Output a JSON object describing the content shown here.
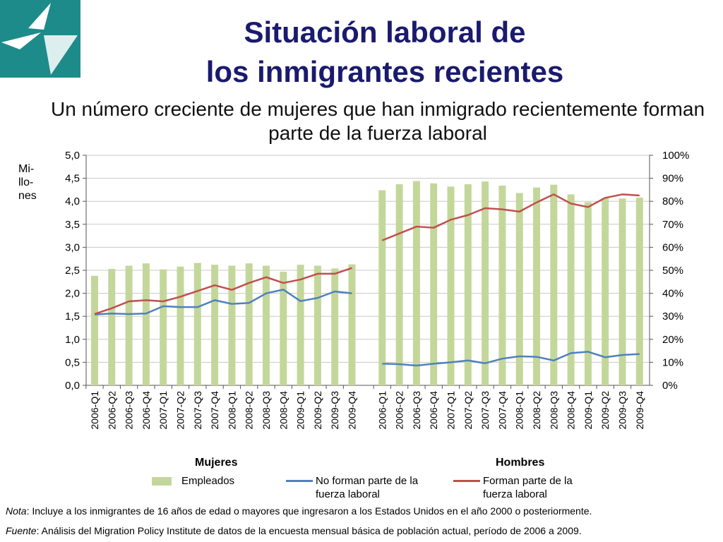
{
  "header": {
    "title_line1": "Situación laboral de",
    "title_line2": "los inmigrantes recientes",
    "subtitle": "Un número creciente de mujeres que han inmigrado recientemente forman parte de la fuerza laboral"
  },
  "colors": {
    "title": "#1a1a6e",
    "bars": "#c4d79b",
    "line_not_in_labor_force": "#4f81bd",
    "line_in_labor_force": "#c0504d",
    "logo_bg": "#1e8b8b"
  },
  "units_label": "Mi-\nllo-\nnes",
  "chart_data": {
    "type": "bar",
    "left_axis": {
      "ylim": [
        0,
        5
      ],
      "ticks": [
        "0,0",
        "0,5",
        "1,0",
        "1,5",
        "2,0",
        "2,5",
        "3,0",
        "3,5",
        "4,0",
        "4,5",
        "5,0"
      ]
    },
    "right_axis": {
      "ylim": [
        0,
        100
      ],
      "ticks": [
        "0%",
        "10%",
        "20%",
        "30%",
        "40%",
        "50%",
        "60%",
        "70%",
        "80%",
        "90%",
        "100%"
      ]
    },
    "grid": true,
    "groups": [
      {
        "name": "Mujeres",
        "categories": [
          "2006-Q1",
          "2006-Q2",
          "2006-Q3",
          "2006-Q4",
          "2007-Q1",
          "2007-Q2",
          "2007-Q3",
          "2007-Q4",
          "2008-Q1",
          "2008-Q2",
          "2008-Q3",
          "2008-Q4",
          "2009-Q1",
          "2009-Q2",
          "2009-Q3",
          "2009-Q4"
        ],
        "series": [
          {
            "name": "Empleados",
            "axis": "left",
            "type": "bar",
            "values": [
              2.38,
              2.53,
              2.6,
              2.65,
              2.52,
              2.58,
              2.66,
              2.62,
              2.6,
              2.65,
              2.6,
              2.47,
              2.62,
              2.6,
              2.54,
              2.63
            ]
          },
          {
            "name": "No forman parte de la fuerza laboral",
            "axis": "left",
            "type": "line",
            "values": [
              1.54,
              1.56,
              1.55,
              1.56,
              1.72,
              1.7,
              1.7,
              1.85,
              1.77,
              1.79,
              2.0,
              2.08,
              1.83,
              1.9,
              2.04,
              2.0
            ]
          },
          {
            "name": "Forman parte de la fuerza laboral",
            "axis": "right",
            "type": "line",
            "values": [
              31,
              33.5,
              36.5,
              37,
              36.5,
              38.5,
              41,
              43.5,
              41.5,
              44.5,
              47,
              44.5,
              46,
              48.5,
              48.5,
              51
            ]
          }
        ]
      },
      {
        "name": "Hombres",
        "categories": [
          "2006-Q1",
          "2006-Q2",
          "2006-Q3",
          "2006-Q4",
          "2007-Q1",
          "2007-Q2",
          "2007-Q3",
          "2007-Q4",
          "2008-Q1",
          "2008-Q2",
          "2008-Q3",
          "2008-Q4",
          "2009-Q1",
          "2009-Q2",
          "2009-Q3",
          "2009-Q4"
        ],
        "series": [
          {
            "name": "Empleados",
            "axis": "left",
            "type": "bar",
            "values": [
              4.24,
              4.37,
              4.44,
              4.39,
              4.32,
              4.37,
              4.43,
              4.34,
              4.18,
              4.3,
              4.36,
              4.15,
              3.98,
              4.07,
              4.06,
              4.08
            ]
          },
          {
            "name": "No forman parte de la fuerza laboral",
            "axis": "left",
            "type": "line",
            "values": [
              0.47,
              0.46,
              0.43,
              0.47,
              0.5,
              0.54,
              0.48,
              0.58,
              0.63,
              0.62,
              0.54,
              0.7,
              0.73,
              0.61,
              0.66,
              0.68
            ]
          },
          {
            "name": "Forman parte de la fuerza laboral",
            "axis": "right",
            "type": "line",
            "values": [
              63,
              66,
              69,
              68.5,
              72,
              74,
              77,
              76.5,
              75.5,
              79.5,
              83,
              79,
              77.5,
              81.5,
              83,
              82.5
            ]
          }
        ]
      }
    ],
    "legend": [
      {
        "name": "Empleados",
        "kind": "bar"
      },
      {
        "name": "No forman parte de la\nfuerza laboral",
        "kind": "line",
        "color": "#4f81bd"
      },
      {
        "name": "Forman parte de la\nfuerza laboral",
        "kind": "line",
        "color": "#c0504d"
      }
    ]
  },
  "notes": {
    "nota_label": "Nota",
    "nota_text": ": Incluye a los inmigrantes de 16 años de edad o mayores que ingresaron a los Estados Unidos en el año 2000 o posteriormente.",
    "fuente_label": "Fuente",
    "fuente_text": ": Análisis del Migration Policy Institute de datos de la encuesta mensual básica de población actual, período de 2006 a 2009."
  }
}
